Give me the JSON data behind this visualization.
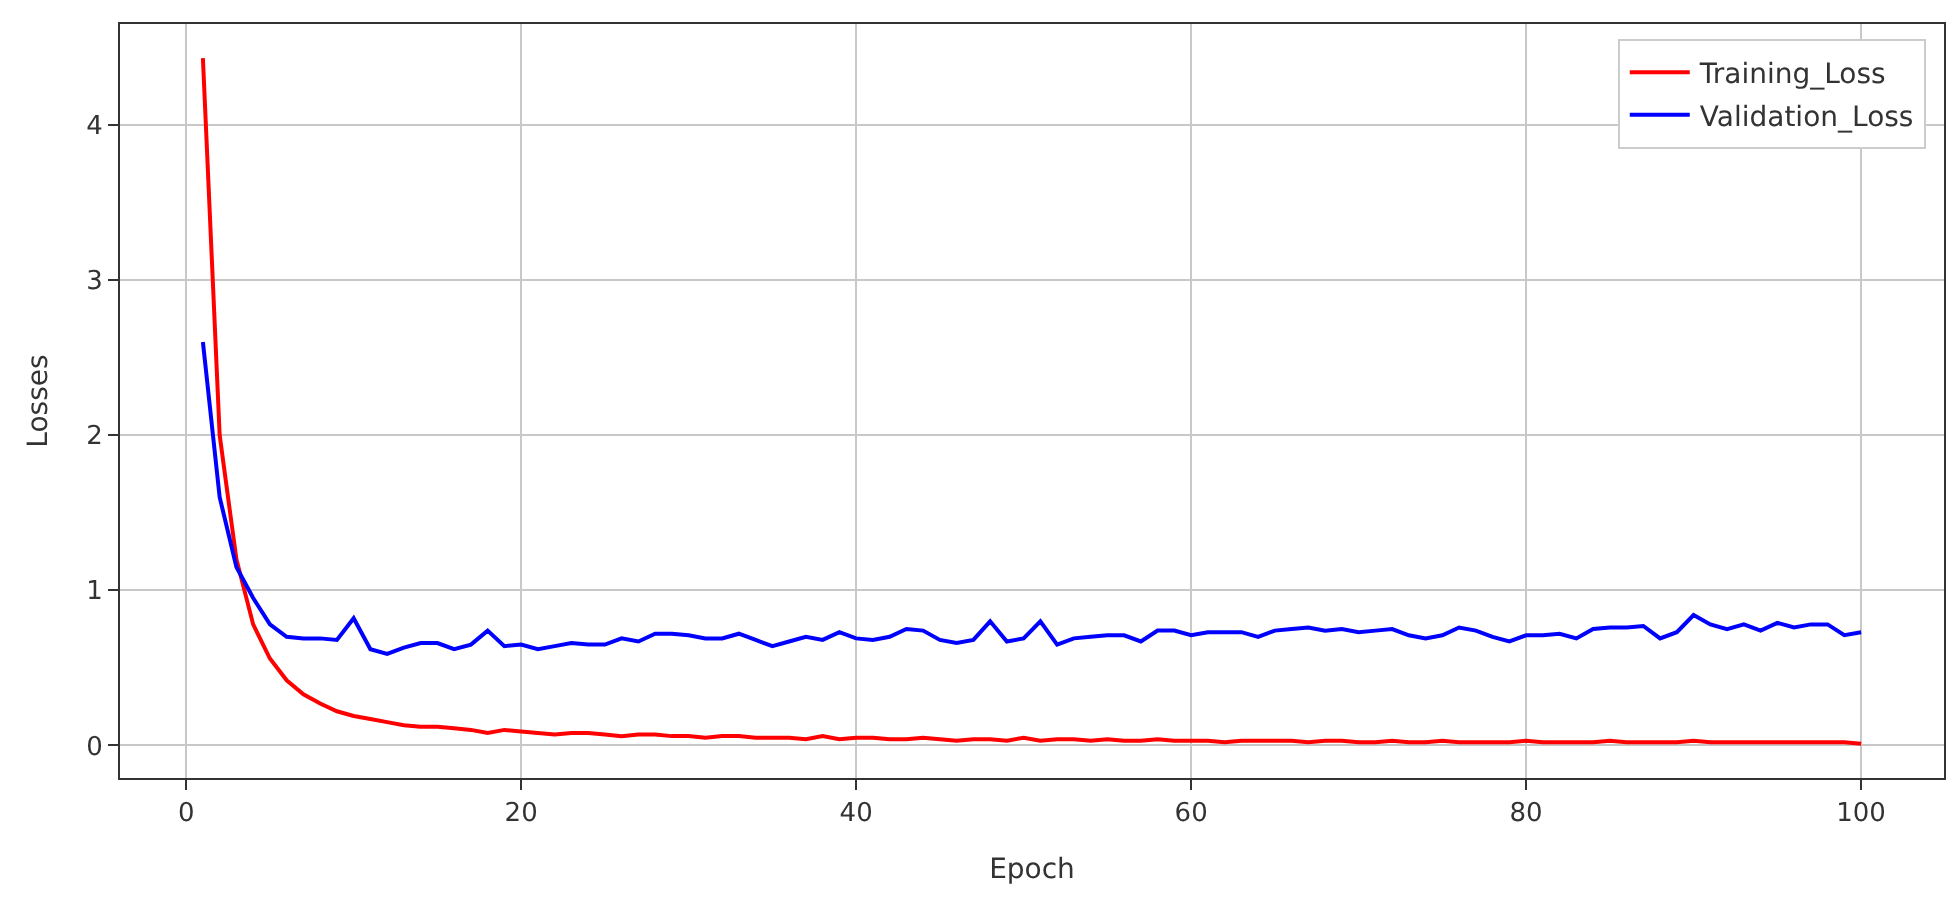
{
  "chart_data": {
    "type": "line",
    "xlabel": "Epoch",
    "ylabel": "Losses",
    "x": [
      1,
      2,
      3,
      4,
      5,
      6,
      7,
      8,
      9,
      10,
      11,
      12,
      13,
      14,
      15,
      16,
      17,
      18,
      19,
      20,
      21,
      22,
      23,
      24,
      25,
      26,
      27,
      28,
      29,
      30,
      31,
      32,
      33,
      34,
      35,
      36,
      37,
      38,
      39,
      40,
      41,
      42,
      43,
      44,
      45,
      46,
      47,
      48,
      49,
      50,
      51,
      52,
      53,
      54,
      55,
      56,
      57,
      58,
      59,
      60,
      61,
      62,
      63,
      64,
      65,
      66,
      67,
      68,
      69,
      70,
      71,
      72,
      73,
      74,
      75,
      76,
      77,
      78,
      79,
      80,
      81,
      82,
      83,
      84,
      85,
      86,
      87,
      88,
      89,
      90,
      91,
      92,
      93,
      94,
      95,
      96,
      97,
      98,
      99,
      100
    ],
    "series": [
      {
        "name": "Training_Loss",
        "color": "#ff0000",
        "values": [
          4.43,
          2.0,
          1.2,
          0.78,
          0.56,
          0.42,
          0.33,
          0.27,
          0.22,
          0.19,
          0.17,
          0.15,
          0.13,
          0.12,
          0.12,
          0.11,
          0.1,
          0.08,
          0.1,
          0.09,
          0.08,
          0.07,
          0.08,
          0.08,
          0.07,
          0.06,
          0.07,
          0.07,
          0.06,
          0.06,
          0.05,
          0.06,
          0.06,
          0.05,
          0.05,
          0.05,
          0.04,
          0.06,
          0.04,
          0.05,
          0.05,
          0.04,
          0.04,
          0.05,
          0.04,
          0.03,
          0.04,
          0.04,
          0.03,
          0.05,
          0.03,
          0.04,
          0.04,
          0.03,
          0.04,
          0.03,
          0.03,
          0.04,
          0.03,
          0.03,
          0.03,
          0.02,
          0.03,
          0.03,
          0.03,
          0.03,
          0.02,
          0.03,
          0.03,
          0.02,
          0.02,
          0.03,
          0.02,
          0.02,
          0.03,
          0.02,
          0.02,
          0.02,
          0.02,
          0.03,
          0.02,
          0.02,
          0.02,
          0.02,
          0.03,
          0.02,
          0.02,
          0.02,
          0.02,
          0.03,
          0.02,
          0.02,
          0.02,
          0.02,
          0.02,
          0.02,
          0.02,
          0.02,
          0.02,
          0.01
        ]
      },
      {
        "name": "Validation_Loss",
        "color": "#0000ff",
        "values": [
          2.6,
          1.6,
          1.15,
          0.95,
          0.78,
          0.7,
          0.69,
          0.69,
          0.68,
          0.82,
          0.62,
          0.59,
          0.63,
          0.66,
          0.66,
          0.62,
          0.65,
          0.74,
          0.64,
          0.65,
          0.62,
          0.64,
          0.66,
          0.65,
          0.65,
          0.69,
          0.67,
          0.72,
          0.72,
          0.71,
          0.69,
          0.69,
          0.72,
          0.68,
          0.64,
          0.67,
          0.7,
          0.68,
          0.73,
          0.69,
          0.68,
          0.7,
          0.75,
          0.74,
          0.68,
          0.66,
          0.68,
          0.8,
          0.67,
          0.69,
          0.8,
          0.65,
          0.69,
          0.7,
          0.71,
          0.71,
          0.67,
          0.74,
          0.74,
          0.71,
          0.73,
          0.73,
          0.73,
          0.7,
          0.74,
          0.75,
          0.76,
          0.74,
          0.75,
          0.73,
          0.74,
          0.75,
          0.71,
          0.69,
          0.71,
          0.76,
          0.74,
          0.7,
          0.67,
          0.71,
          0.71,
          0.72,
          0.69,
          0.75,
          0.76,
          0.76,
          0.77,
          0.69,
          0.73,
          0.84,
          0.78,
          0.75,
          0.78,
          0.74,
          0.79,
          0.76,
          0.78,
          0.78,
          0.71,
          0.73
        ]
      }
    ],
    "xlim": [
      -3.95,
      104.95
    ],
    "ylim": [
      -0.21,
      4.65
    ],
    "xticks": [
      0,
      20,
      40,
      60,
      80,
      100
    ],
    "yticks": [
      0,
      1,
      2,
      3,
      4
    ],
    "grid": true,
    "legend": "top right",
    "marker": "none",
    "line_style": "solid"
  }
}
